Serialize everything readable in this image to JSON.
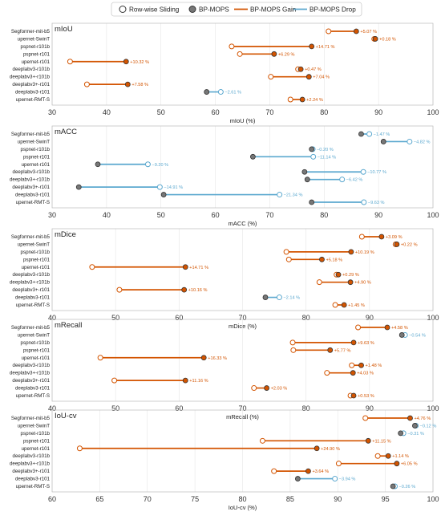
{
  "legend": {
    "items": [
      {
        "label": "Row-wise Sliding",
        "kind": "open-circle"
      },
      {
        "label": "BP-MOPS",
        "kind": "filled-circle"
      },
      {
        "label": "BP-MOPS Gain",
        "kind": "line",
        "color": "#d35400"
      },
      {
        "label": "BP-MOPS Drop",
        "kind": "line",
        "color": "#5ba8cf"
      }
    ]
  },
  "colors": {
    "gain": "#d35400",
    "drop": "#5ba8cf",
    "neutral": "#777777"
  },
  "chart_data": [
    {
      "type": "dumbbell",
      "title": "mIoU",
      "xlabel": "mIoU  (%)",
      "xlim": [
        30,
        100
      ],
      "xticks": [
        30,
        40,
        50,
        60,
        70,
        80,
        90,
        100
      ],
      "categories": [
        "Segformer-mit-b5",
        "upernet-SwinT",
        "pspnet-r101b",
        "pspnet-r101",
        "upernet-r101",
        "deeplabv3-r101b",
        "deeplabv3+-r101b",
        "deeplabv3+-r101",
        "deeplabv3-r101",
        "upernet-RMT-S"
      ],
      "series": [
        {
          "name": "Row-wise Sliding",
          "values": [
            80.8,
            89.2,
            63.0,
            64.5,
            33.3,
            75.2,
            70.2,
            36.4,
            61.0,
            73.8
          ]
        },
        {
          "name": "BP-MOPS",
          "values": [
            85.9,
            89.4,
            77.7,
            70.8,
            43.6,
            75.7,
            77.2,
            43.9,
            58.4,
            76.0
          ]
        }
      ],
      "labels": [
        "+5.07 %",
        "+0.18 %",
        "+14.71 %",
        "+6.29 %",
        "+10.32 %",
        "+0.47 %",
        "+7.04 %",
        "+7.58 %",
        "−2.61 %",
        "+2.24 %"
      ]
    },
    {
      "type": "dumbbell",
      "title": "mACC",
      "xlabel": "mACC  (%)",
      "xlim": [
        30,
        100
      ],
      "xticks": [
        30,
        40,
        50,
        60,
        70,
        80,
        90,
        100
      ],
      "categories": [
        "Segformer-mit-b5",
        "upernet-SwinT",
        "pspnet-r101b",
        "pspnet-r101",
        "upernet-r101",
        "deeplabv3-r101b",
        "deeplabv3+-r101b",
        "deeplabv3+-r101",
        "deeplabv3-r101",
        "upernet-RMT-S"
      ],
      "series": [
        {
          "name": "Row-wise Sliding",
          "values": [
            88.3,
            95.7,
            77.9,
            78.0,
            47.6,
            87.2,
            83.3,
            49.8,
            71.8,
            87.3
          ]
        },
        {
          "name": "BP-MOPS",
          "values": [
            86.8,
            90.9,
            77.7,
            66.9,
            38.4,
            76.4,
            76.9,
            34.9,
            50.5,
            77.7
          ]
        }
      ],
      "labels": [
        "−1.47 %",
        "−4.82 %",
        "−0.20 %",
        "−11.14 %",
        "−9.20 %",
        "−10.77 %",
        "−6.42 %",
        "−14.91 %",
        "−21.34 %",
        "−9.63 %"
      ]
    },
    {
      "type": "dumbbell",
      "title": "mDice",
      "xlabel": "mDice  (%)",
      "xlim": [
        40,
        100
      ],
      "xticks": [
        40,
        50,
        60,
        70,
        80,
        90,
        100
      ],
      "categories": [
        "Segformer-mit-b5",
        "upernet-SwinT",
        "pspnet-r101b",
        "pspnet-r101",
        "upernet-r101",
        "deeplabv3-r101b",
        "deeplabv3+-r101b",
        "deeplabv3+-r101",
        "deeplabv3-r101",
        "upernet-RMT-S"
      ],
      "series": [
        {
          "name": "Row-wise Sliding",
          "values": [
            88.8,
            94.1,
            76.9,
            77.3,
            46.3,
            84.8,
            82.1,
            50.6,
            75.8,
            84.6
          ]
        },
        {
          "name": "BP-MOPS",
          "values": [
            91.9,
            94.3,
            87.1,
            82.5,
            61.0,
            85.1,
            87.0,
            60.8,
            73.6,
            86.0
          ]
        }
      ],
      "labels": [
        "+3.09 %",
        "+0.22 %",
        "+10.19 %",
        "+5.18 %",
        "+14.71 %",
        "+0.29 %",
        "+4.90 %",
        "+10.16 %",
        "−2.14 %",
        "+1.45 %"
      ]
    },
    {
      "type": "dumbbell",
      "title": "mRecall",
      "xlabel": "mRecall  (%)",
      "xlim": [
        40,
        100
      ],
      "xticks": [
        40,
        50,
        60,
        70,
        80,
        90,
        100
      ],
      "categories": [
        "Segformer-mit-b5",
        "upernet-SwinT",
        "pspnet-r101b",
        "pspnet-r101",
        "upernet-r101",
        "deeplabv3-r101b",
        "deeplabv3+-r101b",
        "deeplabv3+-r101",
        "deeplabv3-r101",
        "upernet-RMT-S"
      ],
      "series": [
        {
          "name": "Row-wise Sliding",
          "values": [
            88.2,
            95.6,
            77.9,
            78.0,
            47.6,
            87.2,
            83.3,
            49.8,
            71.8,
            87.0
          ]
        },
        {
          "name": "BP-MOPS",
          "values": [
            92.8,
            95.1,
            87.5,
            83.8,
            63.9,
            88.7,
            87.4,
            61.0,
            73.8,
            87.5
          ]
        }
      ],
      "labels": [
        "+4.58 %",
        "−0.54 %",
        "+9.63 %",
        "+5.77 %",
        "+16.33 %",
        "+1.48 %",
        "+4.03 %",
        "+11.16 %",
        "+2.03 %",
        "+0.53 %"
      ]
    },
    {
      "type": "dumbbell",
      "title": "IoU-cv",
      "xlabel": "IoU-cv  (%)",
      "xlim": [
        60,
        100
      ],
      "xticks": [
        60,
        65,
        70,
        75,
        80,
        85,
        90,
        95,
        100
      ],
      "categories": [
        "Segformer-mit-b5",
        "upernet-SwinT",
        "pspnet-r101b",
        "pspnet-r101",
        "upernet-r101",
        "deeplabv3-r101b",
        "deeplabv3+-r101b",
        "deeplabv3+-r101",
        "deeplabv3-r101",
        "upernet-RMT-S"
      ],
      "series": [
        {
          "name": "Row-wise Sliding",
          "values": [
            92.9,
            98.2,
            96.9,
            82.1,
            62.9,
            94.2,
            90.1,
            83.3,
            89.7,
            96.0
          ]
        },
        {
          "name": "BP-MOPS",
          "values": [
            97.6,
            98.1,
            96.6,
            93.2,
            87.8,
            95.3,
            96.2,
            86.9,
            85.8,
            95.8
          ]
        }
      ],
      "labels": [
        "+4.76 %",
        "−0.12 %",
        "−0.31 %",
        "+11.15 %",
        "+24.90 %",
        "+1.14 %",
        "+6.05 %",
        "+3.64 %",
        "−3.94 %",
        "−0.26 %"
      ]
    }
  ]
}
